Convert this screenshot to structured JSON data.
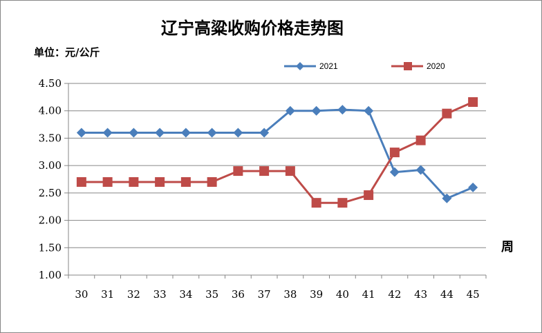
{
  "chart_data": {
    "type": "line",
    "title": "辽宁高粱收购价格走势图",
    "unit_label": "单位：元/公斤",
    "xlabel": "周",
    "ylabel": "",
    "categories": [
      "30",
      "31",
      "32",
      "33",
      "34",
      "35",
      "36",
      "37",
      "38",
      "39",
      "40",
      "41",
      "42",
      "43",
      "44",
      "45"
    ],
    "ylim": [
      1.0,
      4.5
    ],
    "yticks": [
      "1.00",
      "1.50",
      "2.00",
      "2.50",
      "3.00",
      "3.50",
      "4.00",
      "4.50"
    ],
    "grid": true,
    "legend_position": "top-right",
    "series": [
      {
        "name": "2021",
        "color": "#4a7ebb",
        "marker": "diamond",
        "values": [
          3.6,
          3.6,
          3.6,
          3.6,
          3.6,
          3.6,
          3.6,
          3.6,
          4.0,
          4.0,
          4.02,
          4.0,
          2.88,
          2.92,
          2.4,
          2.6
        ]
      },
      {
        "name": "2020",
        "color": "#be4b48",
        "marker": "square",
        "values": [
          2.7,
          2.7,
          2.7,
          2.7,
          2.7,
          2.7,
          2.9,
          2.9,
          2.9,
          2.32,
          2.32,
          2.46,
          3.24,
          3.46,
          3.95,
          4.16
        ]
      }
    ]
  }
}
